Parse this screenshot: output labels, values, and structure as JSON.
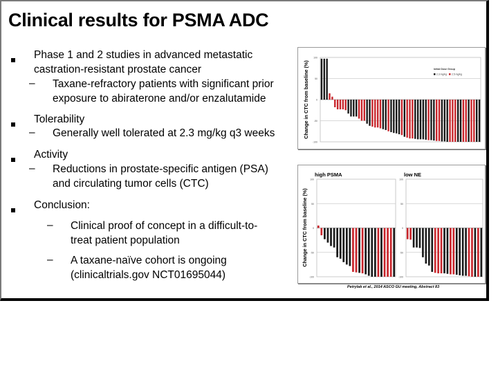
{
  "slide": {
    "title": "Clinical results for PSMA ADC",
    "bullets": [
      {
        "level": 1,
        "text": [
          "Phase 1 and 2 studies in advanced metastatic",
          "castration-resistant prostate cancer"
        ]
      },
      {
        "level": 2,
        "text": [
          "Taxane-refractory patients with significant prior",
          "exposure to abiraterone and/or enzalutamide"
        ]
      },
      {
        "level": 1,
        "text": [
          "Tolerability"
        ]
      },
      {
        "level": 2,
        "text": [
          "Generally well tolerated at 2.3 mg/kg q3 weeks"
        ]
      },
      {
        "level": 1,
        "text": [
          "Activity"
        ]
      },
      {
        "level": 2,
        "text": [
          "Reductions in prostate-specific antigen (PSA)",
          "and circulating tumor cells (CTC)"
        ]
      },
      {
        "level": 1,
        "text": [
          "Conclusion:"
        ]
      },
      {
        "level": 3,
        "text": [
          "Clinical proof of concept in a difficult-to-",
          "treat patient population"
        ]
      },
      {
        "level": 3,
        "text": [
          "A taxane-naïve cohort is ongoing",
          "(clinicaltrials.gov NCT01695044)"
        ]
      }
    ],
    "markers": {
      "level1": "▪",
      "level2": "–",
      "level3": "–"
    },
    "citation": "Petrylak et al., 2014 ASCO GU meeting, Abstract 83"
  },
  "colors": {
    "dose_2_3": "#1a1a1a",
    "dose_2_5": "#c8262c"
  },
  "chart_data": [
    {
      "type": "bar",
      "title": "",
      "ylabel": "Change in CTC from baseline (%)",
      "xlabel": "",
      "ylim": [
        -100,
        100
      ],
      "yticks": [
        100,
        50,
        0,
        -50,
        -100
      ],
      "grid": true,
      "legend": {
        "title": "Initial Dose Group",
        "position": "top-right",
        "entries": [
          "2.3 mg/kg",
          "2.5 mg/kg"
        ]
      },
      "series_key": [
        "2.3 mg/kg",
        "2.5 mg/kg"
      ],
      "values": [
        97,
        97,
        97,
        15,
        7,
        -18,
        -23,
        -23,
        -23,
        -25,
        -33,
        -40,
        -40,
        -40,
        -45,
        -50,
        -50,
        -57,
        -62,
        -64,
        -66,
        -66,
        -68,
        -70,
        -72,
        -75,
        -77,
        -79,
        -80,
        -82,
        -84,
        -88,
        -90,
        -92,
        -92,
        -93,
        -94,
        -94,
        -94,
        -95,
        -96,
        -96,
        -97,
        -98,
        -98,
        -99,
        -99,
        -100,
        -100,
        -100,
        -100,
        -100,
        -100,
        -100,
        -100,
        -100,
        -100,
        -100,
        -100,
        -100
      ],
      "groups": [
        "2.3 mg/kg",
        "2.3 mg/kg",
        "2.3 mg/kg",
        "2.5 mg/kg",
        "2.5 mg/kg",
        "2.5 mg/kg",
        "2.5 mg/kg",
        "2.5 mg/kg",
        "2.5 mg/kg",
        "2.5 mg/kg",
        "2.3 mg/kg",
        "2.3 mg/kg",
        "2.3 mg/kg",
        "2.3 mg/kg",
        "2.5 mg/kg",
        "2.5 mg/kg",
        "2.5 mg/kg",
        "2.3 mg/kg",
        "2.3 mg/kg",
        "2.5 mg/kg",
        "2.5 mg/kg",
        "2.5 mg/kg",
        "2.5 mg/kg",
        "2.3 mg/kg",
        "2.3 mg/kg",
        "2.5 mg/kg",
        "2.3 mg/kg",
        "2.3 mg/kg",
        "2.3 mg/kg",
        "2.3 mg/kg",
        "2.5 mg/kg",
        "2.3 mg/kg",
        "2.5 mg/kg",
        "2.5 mg/kg",
        "2.5 mg/kg",
        "2.3 mg/kg",
        "2.3 mg/kg",
        "2.3 mg/kg",
        "2.3 mg/kg",
        "2.3 mg/kg",
        "2.5 mg/kg",
        "2.3 mg/kg",
        "2.3 mg/kg",
        "2.5 mg/kg",
        "2.5 mg/kg",
        "2.3 mg/kg",
        "2.3 mg/kg",
        "2.3 mg/kg",
        "2.5 mg/kg",
        "2.5 mg/kg",
        "2.5 mg/kg",
        "2.3 mg/kg",
        "2.3 mg/kg",
        "2.5 mg/kg",
        "2.5 mg/kg",
        "2.3 mg/kg",
        "2.5 mg/kg",
        "2.5 mg/kg",
        "2.3 mg/kg",
        "2.3 mg/kg"
      ]
    },
    {
      "type": "bar",
      "title": "high PSMA",
      "ylabel": "Change in CTC from baseline (%)",
      "ylim": [
        -100,
        100
      ],
      "yticks": [
        100,
        50,
        0,
        -50,
        -100
      ],
      "grid": true,
      "values": [
        5,
        -15,
        -23,
        -30,
        -37,
        -40,
        -60,
        -63,
        -70,
        -75,
        -78,
        -90,
        -91,
        -92,
        -93,
        -95,
        -98,
        -100,
        -100,
        -100,
        -100,
        -100,
        -100,
        -100,
        -100
      ],
      "groups": [
        "2.5 mg/kg",
        "2.5 mg/kg",
        "2.3 mg/kg",
        "2.3 mg/kg",
        "2.3 mg/kg",
        "2.3 mg/kg",
        "2.3 mg/kg",
        "2.3 mg/kg",
        "2.3 mg/kg",
        "2.3 mg/kg",
        "2.3 mg/kg",
        "2.5 mg/kg",
        "2.5 mg/kg",
        "2.3 mg/kg",
        "2.5 mg/kg",
        "2.3 mg/kg",
        "2.3 mg/kg",
        "2.3 mg/kg",
        "2.3 mg/kg",
        "2.5 mg/kg",
        "2.3 mg/kg",
        "2.5 mg/kg",
        "2.5 mg/kg",
        "2.5 mg/kg",
        "2.3 mg/kg"
      ]
    },
    {
      "type": "bar",
      "title": "low NE",
      "ylabel": "",
      "ylim": [
        -100,
        100
      ],
      "yticks": [
        100,
        50,
        0,
        -50,
        -100
      ],
      "grid": true,
      "values": [
        -23,
        -24,
        -40,
        -40,
        -41,
        -60,
        -73,
        -77,
        -90,
        -92,
        -93,
        -93,
        -93,
        -94,
        -95,
        -95,
        -96,
        -97,
        -98,
        -98,
        -99,
        -100,
        -100,
        -100,
        -100
      ],
      "groups": [
        "2.5 mg/kg",
        "2.5 mg/kg",
        "2.3 mg/kg",
        "2.3 mg/kg",
        "2.3 mg/kg",
        "2.3 mg/kg",
        "2.3 mg/kg",
        "2.3 mg/kg",
        "2.3 mg/kg",
        "2.5 mg/kg",
        "2.5 mg/kg",
        "2.5 mg/kg",
        "2.3 mg/kg",
        "2.3 mg/kg",
        "2.5 mg/kg",
        "2.5 mg/kg",
        "2.3 mg/kg",
        "2.3 mg/kg",
        "2.3 mg/kg",
        "2.3 mg/kg",
        "2.5 mg/kg",
        "2.5 mg/kg",
        "2.3 mg/kg",
        "2.5 mg/kg",
        "2.3 mg/kg"
      ]
    }
  ]
}
